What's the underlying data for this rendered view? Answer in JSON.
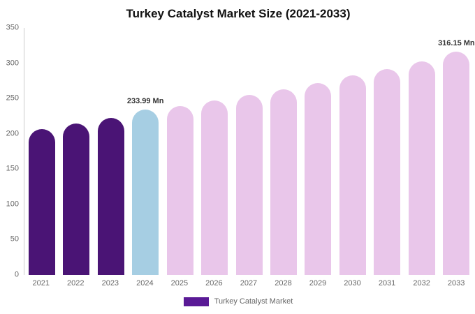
{
  "chart_data": {
    "type": "bar",
    "title": "Turkey Catalyst Market Size (2021-2033)",
    "categories": [
      "2021",
      "2022",
      "2023",
      "2024",
      "2025",
      "2026",
      "2027",
      "2028",
      "2029",
      "2030",
      "2031",
      "2032",
      "2033"
    ],
    "values": [
      207,
      215,
      222,
      233.99,
      239,
      247,
      255,
      263,
      272,
      283,
      292,
      303,
      316.15
    ],
    "unit": "Mn",
    "point_colors": [
      "#4a1475",
      "#4a1475",
      "#4a1475",
      "#a6cee3",
      "#e9c6ea",
      "#e9c6ea",
      "#e9c6ea",
      "#e9c6ea",
      "#e9c6ea",
      "#e9c6ea",
      "#e9c6ea",
      "#e9c6ea",
      "#e9c6ea"
    ],
    "data_labels": [
      null,
      null,
      null,
      "233.99 Mn",
      null,
      null,
      null,
      null,
      null,
      null,
      null,
      null,
      "316.15 Mn"
    ],
    "ylim": [
      0,
      350
    ],
    "yticks": [
      0,
      50,
      100,
      150,
      200,
      250,
      300,
      350
    ],
    "grid": false,
    "legend": {
      "label": "Turkey Catalyst Market",
      "swatch_color": "#5a1a96",
      "position": "bottom"
    }
  }
}
